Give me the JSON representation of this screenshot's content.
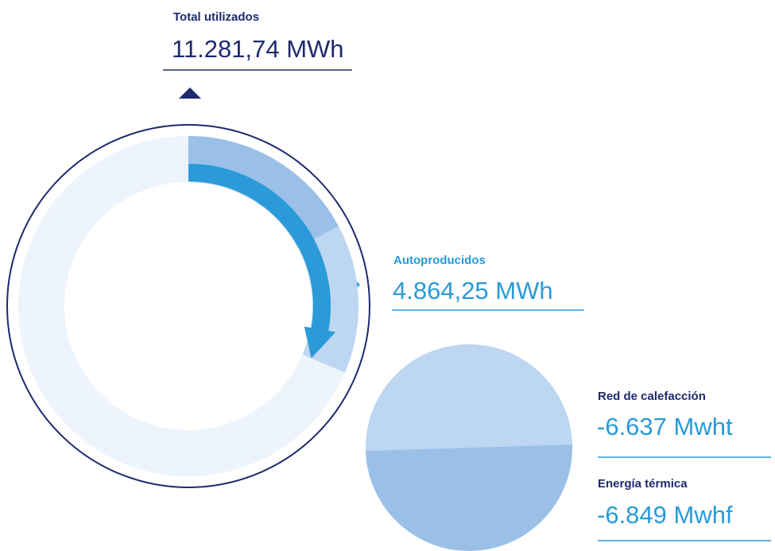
{
  "total": {
    "label": "Total utilizados",
    "value": "11.281,74 MWh"
  },
  "self_produced": {
    "label": "Autoproducidos",
    "value": "4.864,25 MWh"
  },
  "breakdown": [
    {
      "label": "Red de calefacción",
      "value": "-6.637 Mwht"
    },
    {
      "label": "Energía térmica",
      "value": "-6.849 Mwhf"
    }
  ]
}
